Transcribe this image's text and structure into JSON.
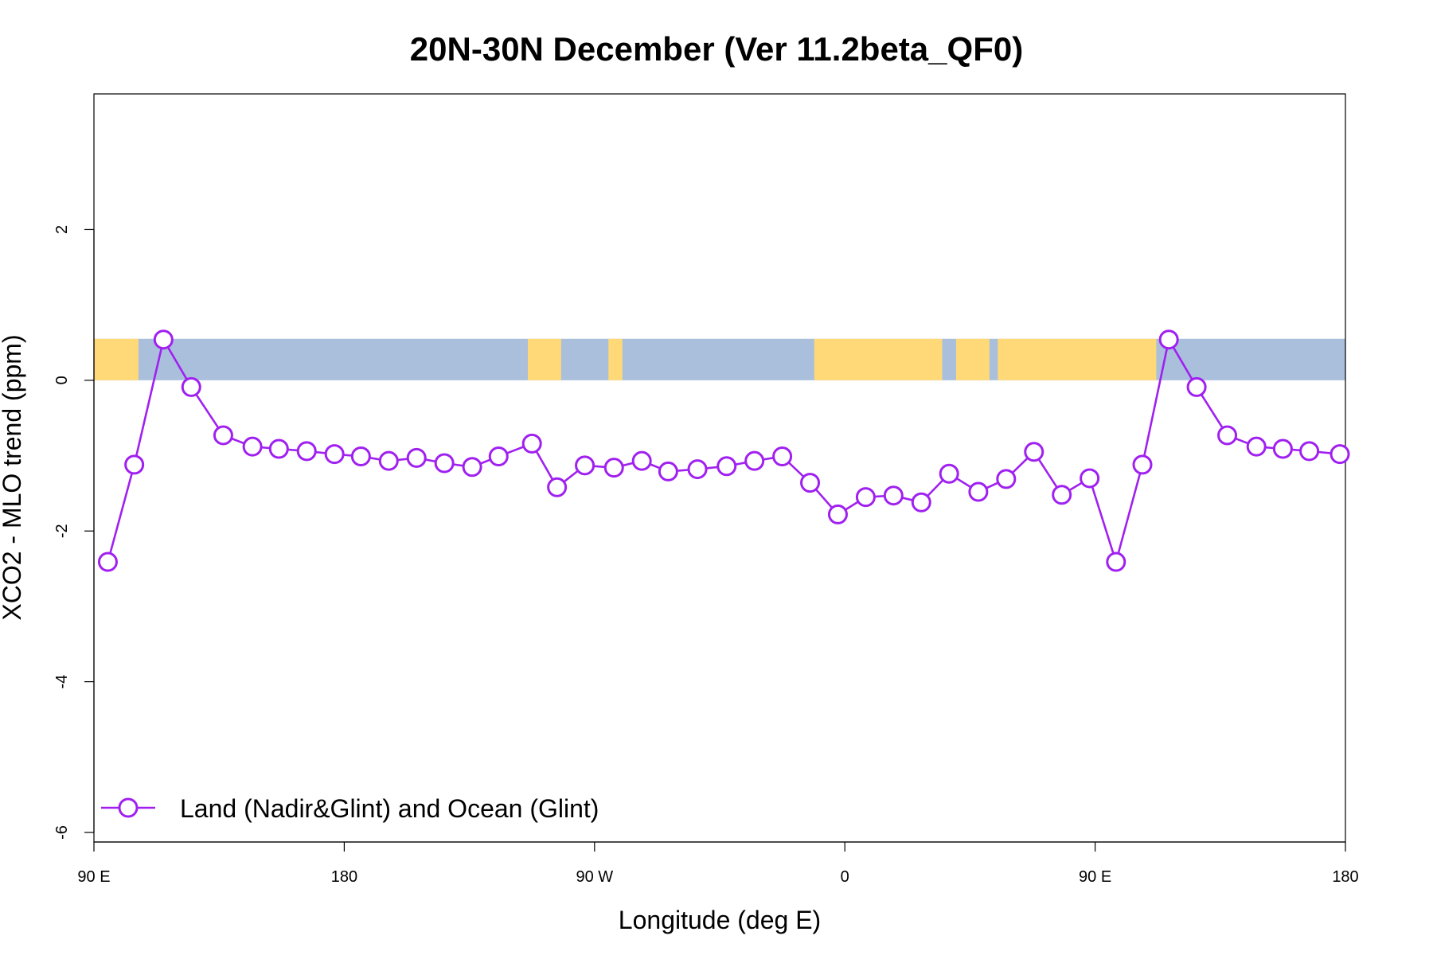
{
  "chart_data": {
    "type": "line",
    "title": "20N-30N December (Ver 11.2beta_QF0)",
    "xlabel": "Longitude (deg E)",
    "ylabel": "XCO2 - MLO trend (ppm)",
    "xlim": [
      90,
      540
    ],
    "ylim": [
      -6,
      3.8
    ],
    "x_ticks": [
      {
        "value": 90,
        "label": "90 E"
      },
      {
        "value": 180,
        "label": "180"
      },
      {
        "value": 270,
        "label": "90 W"
      },
      {
        "value": 360,
        "label": "0"
      },
      {
        "value": 450,
        "label": "90 E"
      },
      {
        "value": 540,
        "label": "180"
      }
    ],
    "y_ticks": [
      {
        "value": 2,
        "label": "2"
      },
      {
        "value": 0,
        "label": "0"
      },
      {
        "value": -2,
        "label": "-2"
      },
      {
        "value": -4,
        "label": "-4"
      },
      {
        "value": -6,
        "label": "-6"
      }
    ],
    "background_band": {
      "y_range": [
        0,
        0.55
      ],
      "ocean_color": "#a9bfdc",
      "land_color": "#ffd978",
      "land_segments": [
        [
          90,
          106
        ],
        [
          246,
          258
        ],
        [
          275,
          280
        ],
        [
          349,
          395
        ],
        [
          400,
          412
        ],
        [
          415,
          472
        ]
      ]
    },
    "legend": {
      "position": "bottom-left",
      "label": "Land (Nadir&Glint) and Ocean (Glint)"
    },
    "series": [
      {
        "name": "Land (Nadir&Glint) and Ocean (Glint)",
        "color": "#a020f0",
        "x": [
          95,
          104.5,
          115,
          125,
          136.5,
          147,
          156.5,
          166.5,
          176.5,
          186,
          196,
          206,
          216,
          226,
          235.5,
          247.5,
          256.5,
          266.5,
          277,
          287,
          296.5,
          307,
          317.5,
          327.5,
          337.5,
          347.5,
          357.5,
          367.5,
          377.5,
          387.5,
          397.5,
          408,
          418,
          428,
          438,
          448,
          457.5,
          467,
          476.5,
          486.5,
          497.5,
          508,
          517.5,
          527,
          538
        ],
        "values": [
          -2.41,
          -1.12,
          0.54,
          -0.09,
          -0.73,
          -0.88,
          -0.91,
          -0.94,
          -0.98,
          -1.01,
          -1.07,
          -1.03,
          -1.1,
          -1.15,
          -1.01,
          -0.84,
          -1.42,
          -1.13,
          -1.16,
          -1.07,
          -1.21,
          -1.18,
          -1.14,
          -1.07,
          -1.01,
          -1.36,
          -1.78,
          -1.55,
          -1.53,
          -1.62,
          -1.24,
          -1.48,
          -1.31,
          -0.95,
          -1.52,
          -1.3,
          -2.41,
          -1.12,
          0.54,
          -0.09,
          -0.73,
          -0.88,
          -0.91,
          -0.94,
          -0.98
        ]
      }
    ]
  }
}
